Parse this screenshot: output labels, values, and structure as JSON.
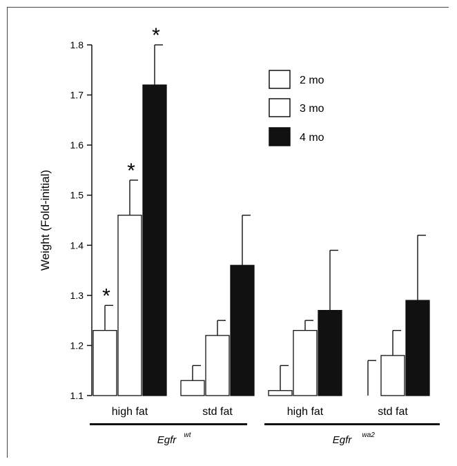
{
  "chart_data": {
    "type": "bar",
    "ylabel": "Weight (Fold-initial)",
    "ylim": [
      1.1,
      1.8
    ],
    "yticks": [
      "1.1",
      "1.2",
      "1.3",
      "1.4",
      "1.5",
      "1.6",
      "1.7",
      "1.8"
    ],
    "categories": [
      "high fat",
      "std fat",
      "high fat",
      "std fat"
    ],
    "groups": [
      {
        "base": "Egfr",
        "sup": "wt",
        "categories": [
          0,
          1
        ]
      },
      {
        "base": "Egfr",
        "sup": "wa2",
        "categories": [
          2,
          3
        ]
      }
    ],
    "series": [
      {
        "name": "2 mo",
        "color": "#ffffff",
        "values": [
          1.23,
          1.13,
          1.11,
          1.1
        ],
        "errors": [
          0.05,
          0.03,
          0.05,
          0.07
        ]
      },
      {
        "name": "3 mo",
        "color": "#ffffff",
        "values": [
          1.46,
          1.22,
          1.23,
          1.18
        ],
        "errors": [
          0.07,
          0.03,
          0.02,
          0.05
        ]
      },
      {
        "name": "4 mo",
        "color": "#111111",
        "values": [
          1.72,
          1.36,
          1.27,
          1.29
        ],
        "errors": [
          0.08,
          0.1,
          0.12,
          0.13
        ]
      }
    ],
    "annotations": [
      {
        "text": "*",
        "series": 0,
        "category": 0
      },
      {
        "text": "*",
        "series": 1,
        "category": 0
      },
      {
        "text": "*",
        "series": 2,
        "category": 0
      }
    ],
    "legend": "top-right"
  }
}
